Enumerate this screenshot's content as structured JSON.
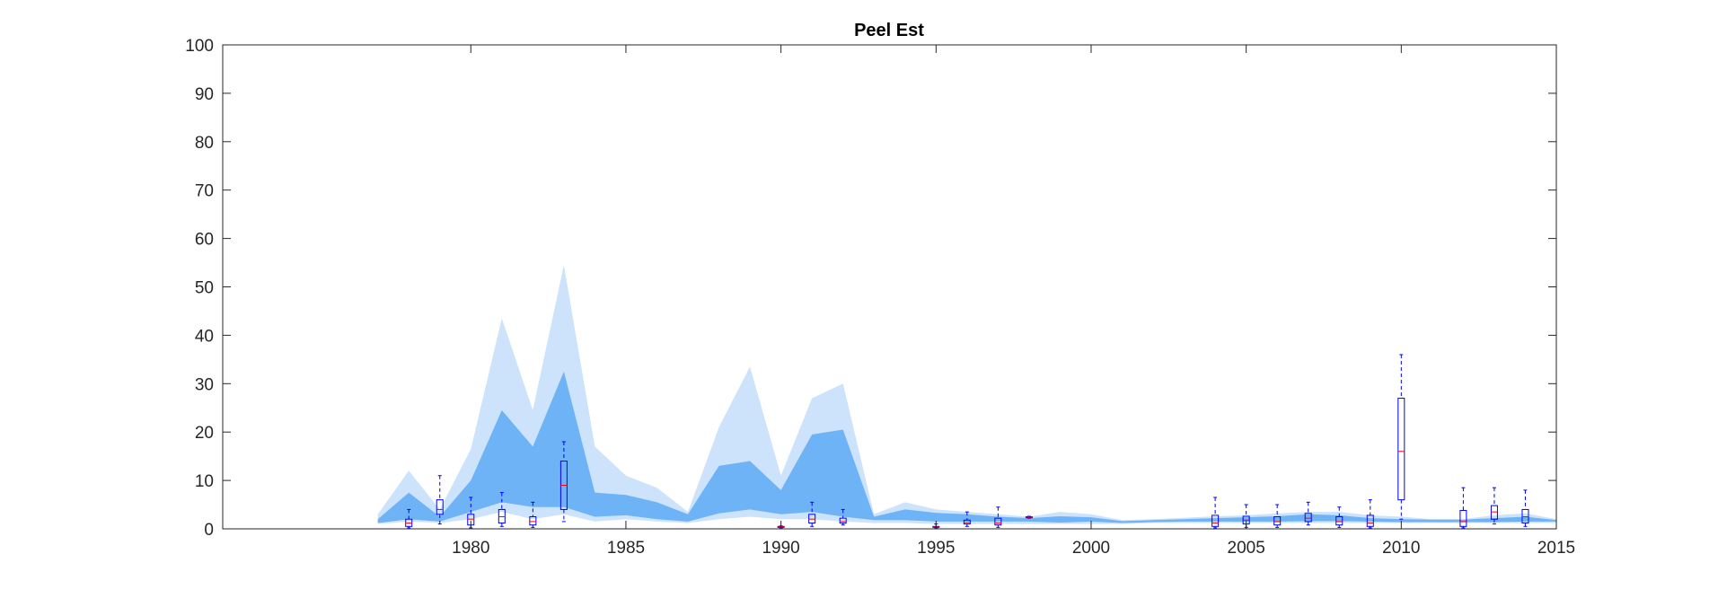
{
  "chart_data": {
    "type": "area",
    "title": "Peel Est",
    "xlabel": "",
    "ylabel": "",
    "xlim": [
      1972,
      2015
    ],
    "ylim": [
      0,
      100
    ],
    "xticks": [
      1980,
      1985,
      1990,
      1995,
      2000,
      2005,
      2010,
      2015
    ],
    "yticks": [
      0,
      10,
      20,
      30,
      40,
      50,
      60,
      70,
      80,
      90,
      100
    ],
    "grid": false,
    "legend": "none",
    "colors": {
      "outer_band": "#cce3fb",
      "inner_band": "#6fb3f7",
      "boxplot": "#0000ff",
      "axis": "#262626"
    },
    "x": [
      1977,
      1978,
      1979,
      1980,
      1981,
      1982,
      1983,
      1984,
      1985,
      1986,
      1987,
      1988,
      1989,
      1990,
      1991,
      1992,
      1993,
      1994,
      1995,
      1996,
      1997,
      1998,
      1999,
      2000,
      2001,
      2002,
      2003,
      2004,
      2005,
      2006,
      2007,
      2008,
      2009,
      2010,
      2011,
      2012,
      2013,
      2014,
      2015
    ],
    "series": [
      {
        "band": "outer",
        "lower": [
          1,
          1.5,
          1.2,
          2,
          3.5,
          2,
          3,
          1.5,
          2,
          1.5,
          1.2,
          2,
          2.5,
          2,
          2,
          1.5,
          1.2,
          1.2,
          1,
          1,
          1,
          1,
          1,
          1,
          1,
          1.2,
          1.2,
          1.2,
          1.2,
          1.2,
          1.2,
          1.2,
          1.2,
          1.2,
          1.2,
          1.2,
          1.2,
          1.2,
          1.2
        ],
        "upper": [
          3,
          12,
          4,
          16.5,
          43.5,
          24.5,
          54.5,
          17,
          11,
          8.5,
          3.5,
          21,
          33.5,
          11,
          27,
          30,
          3,
          5.5,
          4,
          3.5,
          3,
          2.5,
          3.5,
          3,
          1.8,
          2,
          2.3,
          2.6,
          2.8,
          3.2,
          3.5,
          3.5,
          2.8,
          2.5,
          2,
          2,
          2.8,
          3.2,
          2
        ]
      },
      {
        "band": "inner",
        "lower": [
          1.2,
          2,
          1.5,
          3.5,
          5.5,
          4.5,
          4.5,
          2.5,
          2.8,
          2,
          1.5,
          3.2,
          4,
          3,
          3.5,
          2.5,
          1.8,
          1.8,
          1.5,
          1.5,
          1.5,
          1.5,
          1.3,
          1.5,
          1.2,
          1.4,
          1.5,
          1.5,
          1.5,
          1.5,
          1.6,
          1.6,
          1.5,
          1.4,
          1.4,
          1.4,
          1.4,
          1.5,
          1.5
        ],
        "upper": [
          2,
          7.5,
          2.5,
          10,
          24.5,
          17,
          32.5,
          7.5,
          7,
          5.5,
          3,
          13,
          14,
          8,
          19.5,
          20.5,
          2.5,
          4,
          3.3,
          3,
          2.5,
          2.2,
          2.6,
          2.4,
          1.6,
          1.8,
          2,
          2.2,
          2.4,
          2.6,
          3,
          2.8,
          2.2,
          2,
          1.9,
          1.9,
          2.2,
          2.5,
          1.8
        ]
      }
    ],
    "boxplots": [
      {
        "x": 1978,
        "wlo": 0.2,
        "q1": 0.5,
        "med": 1.2,
        "q3": 2,
        "whi": 4
      },
      {
        "x": 1979,
        "wlo": 1,
        "q1": 3,
        "med": 4,
        "q3": 6,
        "whi": 11
      },
      {
        "x": 1980,
        "wlo": 0.2,
        "q1": 0.8,
        "med": 2,
        "q3": 3,
        "whi": 6.5
      },
      {
        "x": 1981,
        "wlo": 0.5,
        "q1": 1.2,
        "med": 2.5,
        "q3": 4,
        "whi": 7.5
      },
      {
        "x": 1982,
        "wlo": 0.3,
        "q1": 0.8,
        "med": 1.5,
        "q3": 2.5,
        "whi": 5.5
      },
      {
        "x": 1983,
        "wlo": 1.5,
        "q1": 4,
        "med": 9,
        "q3": 14,
        "whi": 18
      },
      {
        "x": 1990,
        "wlo": 0.2,
        "q1": 0.3,
        "med": 0.4,
        "q3": 0.5,
        "whi": 0.6
      },
      {
        "x": 1991,
        "wlo": 0.5,
        "q1": 1.2,
        "med": 2,
        "q3": 3,
        "whi": 5.5
      },
      {
        "x": 1992,
        "wlo": 0.8,
        "q1": 1.2,
        "med": 1.5,
        "q3": 2.2,
        "whi": 4
      },
      {
        "x": 1995,
        "wlo": 0.2,
        "q1": 0.3,
        "med": 0.4,
        "q3": 0.5,
        "whi": 1
      },
      {
        "x": 1996,
        "wlo": 0.5,
        "q1": 1.0,
        "med": 1.3,
        "q3": 1.8,
        "whi": 3.5
      },
      {
        "x": 1997,
        "wlo": 0.3,
        "q1": 0.8,
        "med": 1.2,
        "q3": 2.2,
        "whi": 4.5
      },
      {
        "x": 1998,
        "wlo": 2.2,
        "q1": 2.3,
        "med": 2.4,
        "q3": 2.5,
        "whi": 2.6
      },
      {
        "x": 2004,
        "wlo": 0.2,
        "q1": 0.5,
        "med": 1.2,
        "q3": 2.8,
        "whi": 6.5
      },
      {
        "x": 2005,
        "wlo": 0.3,
        "q1": 1.0,
        "med": 1.8,
        "q3": 2.6,
        "whi": 5
      },
      {
        "x": 2006,
        "wlo": 0.3,
        "q1": 0.8,
        "med": 1.5,
        "q3": 2.5,
        "whi": 5
      },
      {
        "x": 2007,
        "wlo": 0.8,
        "q1": 1.5,
        "med": 2.2,
        "q3": 3.2,
        "whi": 5.5
      },
      {
        "x": 2008,
        "wlo": 0.3,
        "q1": 0.8,
        "med": 1.5,
        "q3": 2.5,
        "whi": 4.5
      },
      {
        "x": 2009,
        "wlo": 0.2,
        "q1": 0.5,
        "med": 1.2,
        "q3": 2.8,
        "whi": 6
      },
      {
        "x": 2010,
        "wlo": 2,
        "q1": 6,
        "med": 16,
        "q3": 27,
        "whi": 36
      },
      {
        "x": 2012,
        "wlo": 0.2,
        "q1": 0.5,
        "med": 1.5,
        "q3": 3.8,
        "whi": 8.5
      },
      {
        "x": 2013,
        "wlo": 1,
        "q1": 2,
        "med": 3.5,
        "q3": 4.8,
        "whi": 8.5
      },
      {
        "x": 2014,
        "wlo": 0.5,
        "q1": 1.2,
        "med": 2.5,
        "q3": 4,
        "whi": 8
      }
    ]
  }
}
